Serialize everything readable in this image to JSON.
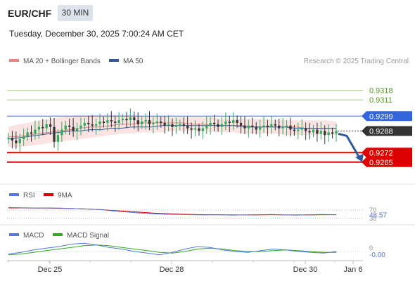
{
  "header": {
    "symbol": "EUR/CHF",
    "timeframe": "30 MIN",
    "datetime": "Tuesday, December 30, 2025 7:00:24 AM CET",
    "credit": "Research © 2025 Trading Central"
  },
  "legend": {
    "ma20": {
      "label": "MA 20 + Bollinger Bands",
      "color": "#f08080"
    },
    "ma50": {
      "label": "MA 50",
      "color": "#2e5a9c"
    }
  },
  "colors": {
    "up": "#2eaa5a",
    "down": "#333333",
    "resistance": "#8cc060",
    "support": "#dd0000",
    "pivot": "#3366dd"
  },
  "chart_data": [
    {
      "type": "candlestick",
      "x_labels": [
        "Dec 25",
        "Dec 28",
        "Dec 30",
        "Jan 6"
      ],
      "ylim": [
        0.9255,
        0.9335
      ],
      "levels": [
        {
          "value": "0.9318",
          "kind": "resistance"
        },
        {
          "value": "0.9311",
          "kind": "resistance"
        },
        {
          "value": "0.9299",
          "kind": "pivot"
        },
        {
          "value": "0.9288",
          "kind": "current"
        },
        {
          "value": "0.9272",
          "kind": "support"
        },
        {
          "value": "0.9265",
          "kind": "support"
        }
      ],
      "close_series": [
        0.9283,
        0.9281,
        0.9279,
        0.9282,
        0.9284,
        0.9287,
        0.9286,
        0.9289,
        0.9291,
        0.929,
        0.9293,
        0.9291,
        0.928,
        0.9285,
        0.9289,
        0.9292,
        0.9291,
        0.9288,
        0.929,
        0.9292,
        0.9294,
        0.9293,
        0.9292,
        0.9293,
        0.9295,
        0.9294,
        0.9296,
        0.9295,
        0.9294,
        0.9296,
        0.9297,
        0.9296,
        0.9298,
        0.9296,
        0.9293,
        0.9295,
        0.9296,
        0.9293,
        0.9294,
        0.9295,
        0.9294,
        0.9292,
        0.9293,
        0.9291,
        0.9292,
        0.9293,
        0.9292,
        0.929,
        0.9289,
        0.929,
        0.9288,
        0.929,
        0.9292,
        0.9294,
        0.9293,
        0.9291,
        0.9293,
        0.9295,
        0.9294,
        0.9296,
        0.9294,
        0.9292,
        0.929,
        0.9292,
        0.9291,
        0.9289,
        0.9291,
        0.9292,
        0.9291,
        0.9293,
        0.9292,
        0.929,
        0.9291,
        0.9292,
        0.9289,
        0.9288,
        0.9289,
        0.929,
        0.9288,
        0.9287,
        0.9289,
        0.9286,
        0.9288,
        0.9285,
        0.9287,
        0.9286,
        0.9288
      ],
      "ma20": [
        0.9284,
        0.9284,
        0.9285,
        0.9286,
        0.9287,
        0.9288,
        0.9289,
        0.929,
        0.9291,
        0.9291,
        0.9292,
        0.9293,
        0.9293,
        0.9294,
        0.9294,
        0.9294,
        0.9294,
        0.9294,
        0.9293,
        0.9293,
        0.9292,
        0.9292,
        0.9292,
        0.9292,
        0.9291,
        0.9291,
        0.9291,
        0.9291,
        0.9291,
        0.929,
        0.929,
        0.929,
        0.929
      ],
      "ma50": [
        0.9282,
        0.9283,
        0.9284,
        0.9285,
        0.9286,
        0.9287,
        0.9288,
        0.9288,
        0.9289,
        0.9289,
        0.929,
        0.929,
        0.9291,
        0.9291,
        0.9291,
        0.9292,
        0.9292,
        0.9292,
        0.9292,
        0.9292,
        0.9292,
        0.9292,
        0.9292,
        0.9291,
        0.9291,
        0.9291,
        0.9291,
        0.9291,
        0.929,
        0.929,
        0.929,
        0.929,
        0.929
      ],
      "bollinger_upper": [
        0.9291,
        0.9293,
        0.9294,
        0.9296,
        0.9297,
        0.9298,
        0.9299,
        0.93,
        0.93,
        0.93,
        0.93,
        0.93,
        0.93,
        0.9299,
        0.9299,
        0.9299,
        0.9298,
        0.9298,
        0.9298,
        0.9298,
        0.9298,
        0.9297,
        0.9297,
        0.9297,
        0.9297,
        0.9297,
        0.9296,
        0.9296,
        0.9296,
        0.9296,
        0.9296,
        0.9296,
        0.9295
      ],
      "bollinger_lower": [
        0.9276,
        0.9276,
        0.9277,
        0.9278,
        0.9279,
        0.928,
        0.9281,
        0.9282,
        0.9283,
        0.9284,
        0.9285,
        0.9286,
        0.9286,
        0.9287,
        0.9287,
        0.9287,
        0.9288,
        0.9288,
        0.9288,
        0.9288,
        0.9287,
        0.9287,
        0.9287,
        0.9286,
        0.9286,
        0.9286,
        0.9286,
        0.9285,
        0.9285,
        0.9285,
        0.9285,
        0.9285,
        0.9285
      ]
    },
    {
      "type": "line",
      "legend": [
        {
          "name": "RSI",
          "color": "#5577dd"
        },
        {
          "name": "9MA",
          "color": "#dd0000"
        }
      ],
      "tick_labels": [
        "70",
        "30"
      ],
      "current_value": "48.57",
      "ylim": [
        0,
        100
      ],
      "rsi": [
        82,
        81,
        80,
        80,
        79,
        77,
        75,
        72,
        66,
        61,
        56,
        52,
        50,
        49,
        48,
        47,
        48,
        46,
        47,
        48,
        49,
        47,
        46,
        48,
        49,
        48
      ],
      "ma9": [
        80,
        80,
        79,
        79,
        78,
        77,
        75,
        72,
        68,
        64,
        60,
        56,
        53,
        51,
        49,
        48,
        48,
        47,
        47,
        47,
        48,
        47,
        47,
        47,
        48,
        48
      ]
    },
    {
      "type": "line",
      "legend": [
        {
          "name": "MACD",
          "color": "#5577dd"
        },
        {
          "name": "MACD Signal",
          "color": "#33aa22"
        }
      ],
      "tick_label": "0",
      "current_value": "-0.00",
      "ylim": [
        -1.2,
        1.2
      ],
      "macd": [
        -0.3,
        -0.1,
        0.2,
        0.4,
        0.6,
        0.9,
        1.0,
        0.8,
        0.5,
        0.3,
        0.0,
        -0.2,
        -0.4,
        -0.1,
        0.3,
        0.6,
        0.5,
        0.2,
        0.0,
        -0.1,
        0.1,
        0.3,
        0.2,
        0.0,
        -0.1,
        -0.2,
        0.0
      ],
      "signal": [
        -0.4,
        -0.3,
        -0.1,
        0.1,
        0.3,
        0.5,
        0.7,
        0.8,
        0.7,
        0.5,
        0.3,
        0.1,
        -0.1,
        -0.2,
        0.0,
        0.3,
        0.4,
        0.3,
        0.1,
        0.0,
        0.0,
        0.1,
        0.2,
        0.1,
        0.0,
        -0.1,
        -0.1
      ]
    }
  ]
}
